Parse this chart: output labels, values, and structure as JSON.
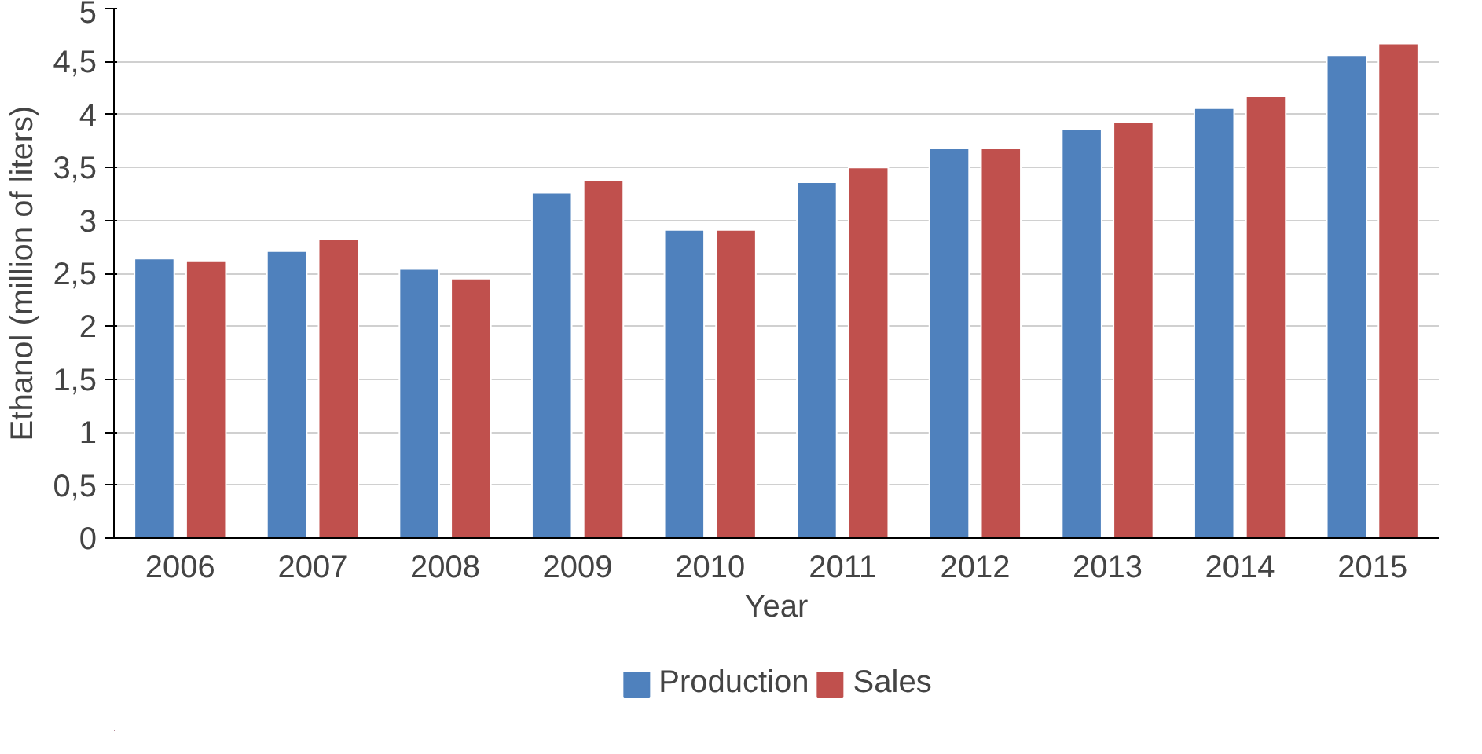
{
  "chart_data": {
    "type": "bar",
    "xlabel": "Year",
    "ylabel": "Ethanol (million of liters)",
    "categories": [
      "2006",
      "2007",
      "2008",
      "2009",
      "2010",
      "2011",
      "2012",
      "2013",
      "2014",
      "2015"
    ],
    "series": [
      {
        "name": "Production",
        "color": "#4f81bd",
        "values": [
          2.64,
          2.71,
          2.54,
          3.26,
          2.91,
          3.36,
          3.68,
          3.86,
          4.06,
          4.56
        ]
      },
      {
        "name": "Sales",
        "color": "#c0504d",
        "values": [
          2.62,
          2.82,
          2.45,
          3.38,
          2.91,
          3.5,
          3.68,
          3.93,
          4.17,
          4.67
        ]
      }
    ],
    "ylim": [
      0,
      5
    ],
    "yticks": [
      0,
      {
        "value": 0.5,
        "label": "0,5"
      },
      1,
      {
        "value": 1.5,
        "label": "1,5"
      },
      2,
      {
        "value": 2.5,
        "label": "2,5"
      },
      3,
      {
        "value": 3.5,
        "label": "3,5"
      },
      4,
      {
        "value": 4.5,
        "label": "4,5"
      },
      5
    ],
    "grid": "y",
    "legend": "bottom"
  }
}
